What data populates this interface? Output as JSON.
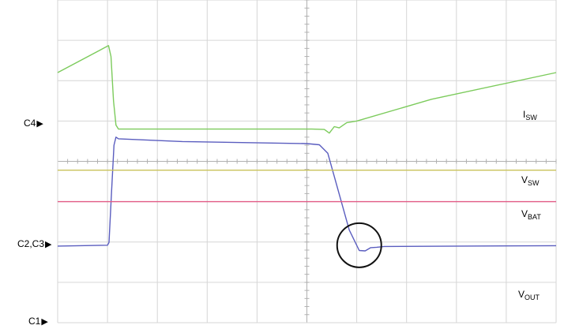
{
  "colors": {
    "isw": "#7ccb5c",
    "vout": "#5a5dbf",
    "vsw": "#c9c25a",
    "vbat": "#e25b86",
    "grid": "#d6d6d6",
    "circle": "#111111"
  },
  "channel_markers": {
    "c4": {
      "label": "C4",
      "arrow": "▶"
    },
    "c2c3": {
      "label": "C2,C3",
      "arrow": "▶"
    },
    "c1": {
      "label": "C1",
      "arrow": "▶"
    }
  },
  "trace_labels": {
    "isw": {
      "main": "I",
      "sub": "SW"
    },
    "vsw": {
      "main": "V",
      "sub": "SW"
    },
    "vbat": {
      "main": "V",
      "sub": "BAT"
    },
    "vout": {
      "main": "V",
      "sub": "OUT"
    }
  },
  "chart_data": {
    "type": "line",
    "grid": true,
    "xlim": [
      0,
      10
    ],
    "ylim": [
      0,
      8
    ],
    "series": [
      {
        "key": "isw",
        "name": "ISW",
        "points": [
          [
            0,
            6.2
          ],
          [
            1.02,
            6.87
          ],
          [
            1.07,
            6.6
          ],
          [
            1.12,
            5.5
          ],
          [
            1.17,
            4.9
          ],
          [
            1.22,
            4.8
          ],
          [
            5.1,
            4.8
          ],
          [
            5.35,
            4.79
          ],
          [
            5.45,
            4.7
          ],
          [
            5.55,
            4.86
          ],
          [
            5.65,
            4.83
          ],
          [
            5.8,
            4.96
          ],
          [
            6.0,
            5.0
          ],
          [
            7.5,
            5.54
          ],
          [
            10,
            6.2
          ]
        ]
      },
      {
        "key": "vout",
        "name": "VOUT",
        "points": [
          [
            0,
            1.9
          ],
          [
            1.0,
            1.92
          ],
          [
            1.03,
            1.99
          ],
          [
            1.08,
            3.2
          ],
          [
            1.13,
            4.4
          ],
          [
            1.17,
            4.6
          ],
          [
            1.22,
            4.56
          ],
          [
            2.5,
            4.49
          ],
          [
            5.0,
            4.44
          ],
          [
            5.25,
            4.41
          ],
          [
            5.42,
            4.2
          ],
          [
            5.6,
            3.4
          ],
          [
            5.85,
            2.3
          ],
          [
            6.05,
            1.79
          ],
          [
            6.17,
            1.78
          ],
          [
            6.28,
            1.86
          ],
          [
            6.4,
            1.87
          ],
          [
            6.55,
            1.89
          ],
          [
            10,
            1.91
          ]
        ]
      },
      {
        "key": "vsw",
        "name": "VSW",
        "points": [
          [
            0,
            3.78
          ],
          [
            10,
            3.78
          ]
        ]
      },
      {
        "key": "vbat",
        "name": "VBAT",
        "points": [
          [
            0,
            3.0
          ],
          [
            10,
            3.0
          ]
        ]
      }
    ],
    "annotations": [
      {
        "type": "circle",
        "x": 6.05,
        "y": 1.92,
        "label": ""
      }
    ]
  }
}
